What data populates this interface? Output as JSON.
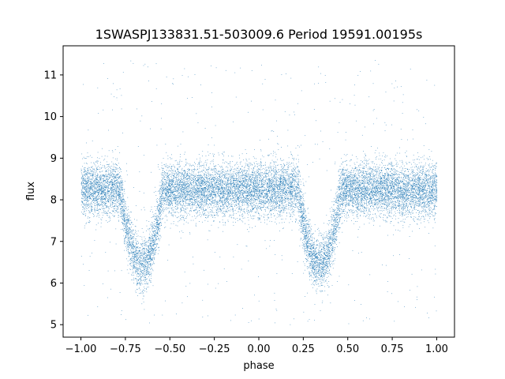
{
  "chart_data": {
    "type": "scatter",
    "title": "1SWASPJ133831.51-503009.6 Period 19591.00195s",
    "xlabel": "phase",
    "ylabel": "flux",
    "xlim": [
      -1.1,
      1.1
    ],
    "ylim": [
      4.7,
      11.7
    ],
    "xticks": [
      -1.0,
      -0.75,
      -0.5,
      -0.25,
      0.0,
      0.25,
      0.5,
      0.75,
      1.0
    ],
    "xtick_labels": [
      "−1.00",
      "−0.75",
      "−0.50",
      "−0.25",
      "0.00",
      "0.25",
      "0.50",
      "0.75",
      "1.00"
    ],
    "yticks": [
      5,
      6,
      7,
      8,
      9,
      10,
      11
    ],
    "ytick_labels": [
      "5",
      "6",
      "7",
      "8",
      "9",
      "10",
      "11"
    ],
    "grid": false,
    "marker_color": "#1f77b4",
    "series": [
      {
        "phase_range": [
          -1.0,
          1.0
        ],
        "baseline_flux": 8.25,
        "scatter_sigma": 0.32,
        "eclipses": [
          {
            "center_phase": -0.66,
            "min_flux": 6.45,
            "width": 0.12
          },
          {
            "center_phase": 0.34,
            "min_flux": 6.45,
            "width": 0.12
          }
        ],
        "outlier_flux_range": [
          5.0,
          11.4
        ],
        "point_count": 16000
      }
    ]
  }
}
